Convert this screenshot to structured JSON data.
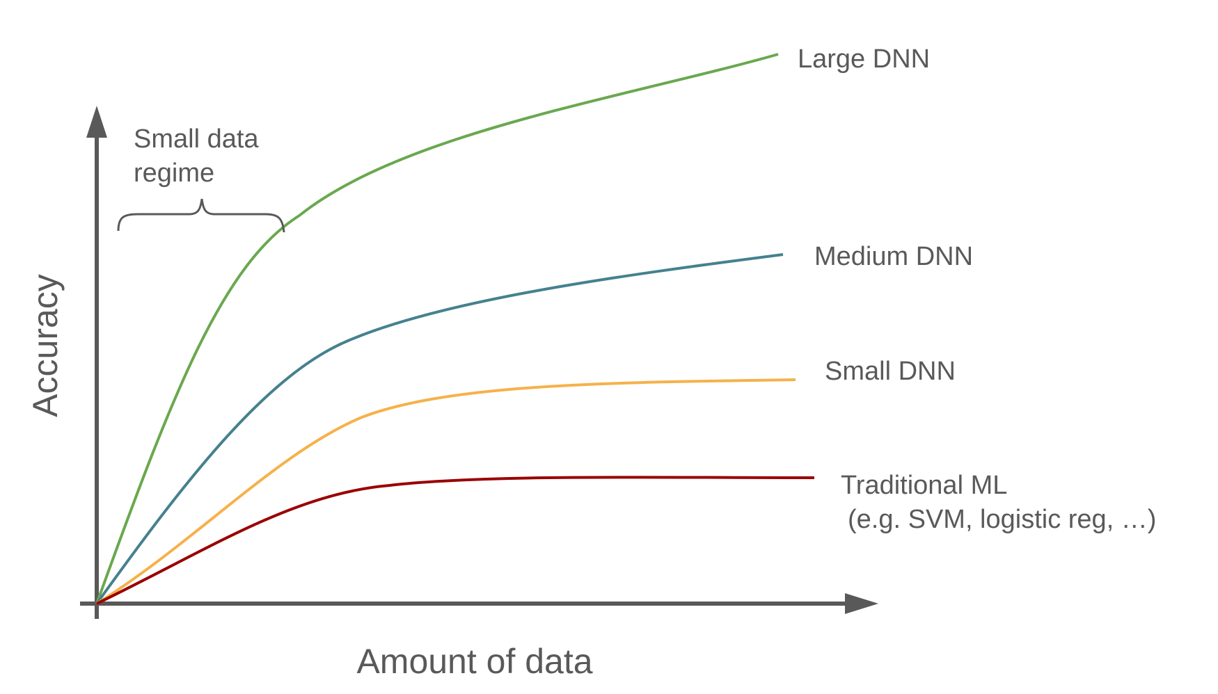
{
  "x_axis": {
    "label": "Amount of data"
  },
  "y_axis": {
    "label": "Accuracy"
  },
  "annotation": {
    "lines": [
      "Small data",
      "regime"
    ]
  },
  "colors": {
    "axis": "#595959",
    "text": "#595959",
    "brace": "#595959"
  },
  "series": [
    {
      "key": "large",
      "name": "Large DNN",
      "note": "",
      "color": "#6aa84f"
    },
    {
      "key": "medium",
      "name": "Medium DNN",
      "note": "",
      "color": "#45818e"
    },
    {
      "key": "small",
      "name": "Small DNN",
      "note": "",
      "color": "#f6b14a"
    },
    {
      "key": "traditional",
      "name": "Traditional ML",
      "note": "(e.g. SVM, logistic reg, …)",
      "color": "#990000"
    }
  ]
}
